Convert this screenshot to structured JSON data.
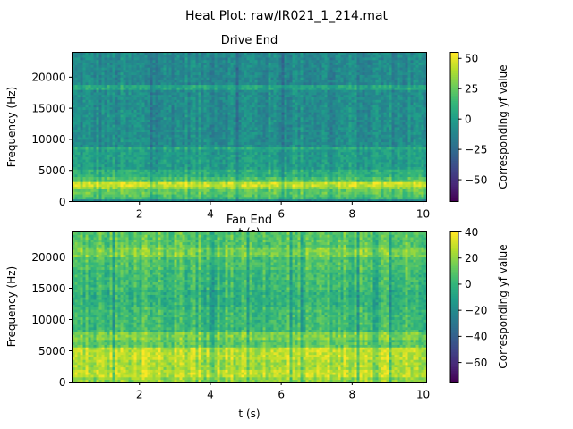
{
  "figure": {
    "suptitle": "Heat Plot: raw/IR021_1_214.mat"
  },
  "chart_data": [
    {
      "type": "heatmap",
      "title": "Drive End",
      "xlabel": "t (s)",
      "ylabel": "Frequency (Hz)",
      "xlim": [
        0.1,
        10.1
      ],
      "ylim": [
        0,
        24000
      ],
      "x_ticks": [
        2,
        4,
        6,
        8,
        10
      ],
      "y_ticks": [
        0,
        5000,
        10000,
        15000,
        20000
      ],
      "colorbar": {
        "label": "Corresponding yf value",
        "range": [
          -68,
          55
        ],
        "ticks": [
          50,
          25,
          0,
          -25,
          -50
        ]
      },
      "colormap": "viridis",
      "bands": [
        {
          "freq": [
            0,
            400
          ],
          "level": -10
        },
        {
          "freq": [
            400,
            1000
          ],
          "level": 15
        },
        {
          "freq": [
            1000,
            1400
          ],
          "level": 20
        },
        {
          "freq": [
            1400,
            1900
          ],
          "level": 25
        },
        {
          "freq": [
            1900,
            2400
          ],
          "level": 35
        },
        {
          "freq": [
            2400,
            3400
          ],
          "level": 45
        },
        {
          "freq": [
            3400,
            4200
          ],
          "level": 20
        },
        {
          "freq": [
            4200,
            5200
          ],
          "level": 10
        },
        {
          "freq": [
            5200,
            8600
          ],
          "level": 0
        },
        {
          "freq": [
            8600,
            9000
          ],
          "level": 8
        },
        {
          "freq": [
            9000,
            18200
          ],
          "level": -8
        },
        {
          "freq": [
            18200,
            18800
          ],
          "level": 5
        },
        {
          "freq": [
            18800,
            24000
          ],
          "level": -10
        }
      ]
    },
    {
      "type": "heatmap",
      "title": "Fan End",
      "xlabel": "t (s)",
      "ylabel": "Frequency (Hz)",
      "xlim": [
        0.1,
        10.1
      ],
      "ylim": [
        0,
        24000
      ],
      "x_ticks": [
        2,
        4,
        6,
        8,
        10
      ],
      "y_ticks": [
        0,
        5000,
        10000,
        15000,
        20000
      ],
      "colorbar": {
        "label": "Corresponding yf value",
        "range": [
          -75,
          40
        ],
        "ticks": [
          40,
          20,
          0,
          -20,
          -40,
          -60
        ]
      },
      "colormap": "viridis",
      "bands": [
        {
          "freq": [
            0,
            1000
          ],
          "level": 22
        },
        {
          "freq": [
            1000,
            2000
          ],
          "level": 30
        },
        {
          "freq": [
            2000,
            3500
          ],
          "level": 26
        },
        {
          "freq": [
            3500,
            5500
          ],
          "level": 30
        },
        {
          "freq": [
            5500,
            7000
          ],
          "level": 12
        },
        {
          "freq": [
            7000,
            8200
          ],
          "level": 18
        },
        {
          "freq": [
            8200,
            12000
          ],
          "level": 4
        },
        {
          "freq": [
            12000,
            15000
          ],
          "level": 0
        },
        {
          "freq": [
            15000,
            18000
          ],
          "level": 4
        },
        {
          "freq": [
            18000,
            20000
          ],
          "level": 8
        },
        {
          "freq": [
            20000,
            21500
          ],
          "level": 18
        },
        {
          "freq": [
            21500,
            24000
          ],
          "level": 10
        }
      ]
    }
  ]
}
